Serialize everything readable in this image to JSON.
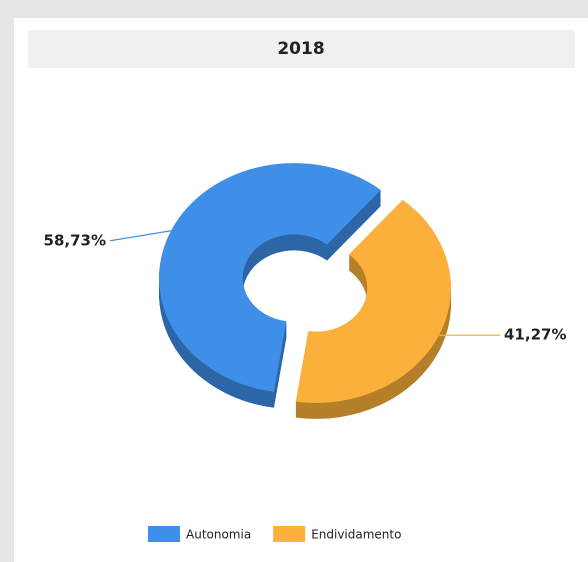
{
  "chart_data": {
    "type": "pie",
    "title": "2018",
    "categories": [
      "Autonomia",
      "Endividamento"
    ],
    "values": [
      58.73,
      41.27
    ],
    "value_labels": [
      "58,73%",
      "41,27%"
    ],
    "colors": [
      "#3f8ee8",
      "#fbb03b"
    ],
    "donut": true,
    "legend": "bottom"
  }
}
